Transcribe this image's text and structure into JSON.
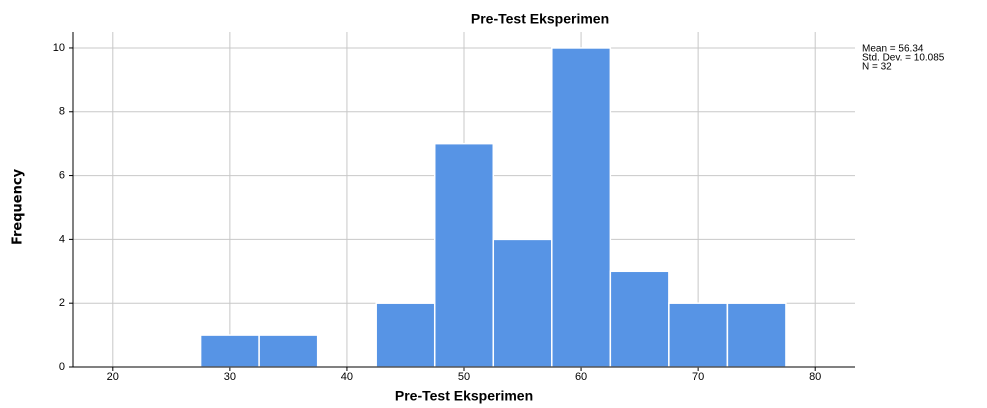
{
  "chart_data": {
    "type": "histogram",
    "title": "Pre-Test Eksperimen",
    "x_label": "Pre-Test Eksperimen",
    "y_label": "Frequency",
    "annotations": [
      "Mean = 56.34",
      "Std. Dev. = 10.085",
      "N = 32"
    ],
    "bins": [
      27.5,
      32.5,
      37.5,
      42.5,
      47.5,
      52.5,
      57.5,
      62.5,
      67.5,
      72.5,
      77.5
    ],
    "values": [
      1,
      1,
      0,
      2,
      7,
      4,
      10,
      3,
      2,
      2
    ],
    "color": "#5794e5",
    "xlim": [
      16.6,
      83.4
    ],
    "xticks": [
      20,
      30,
      40,
      50,
      60,
      70,
      80
    ],
    "ylim": [
      0,
      10.5
    ],
    "yticks": [
      0,
      2,
      4,
      6,
      8,
      10
    ],
    "grid": true
  }
}
